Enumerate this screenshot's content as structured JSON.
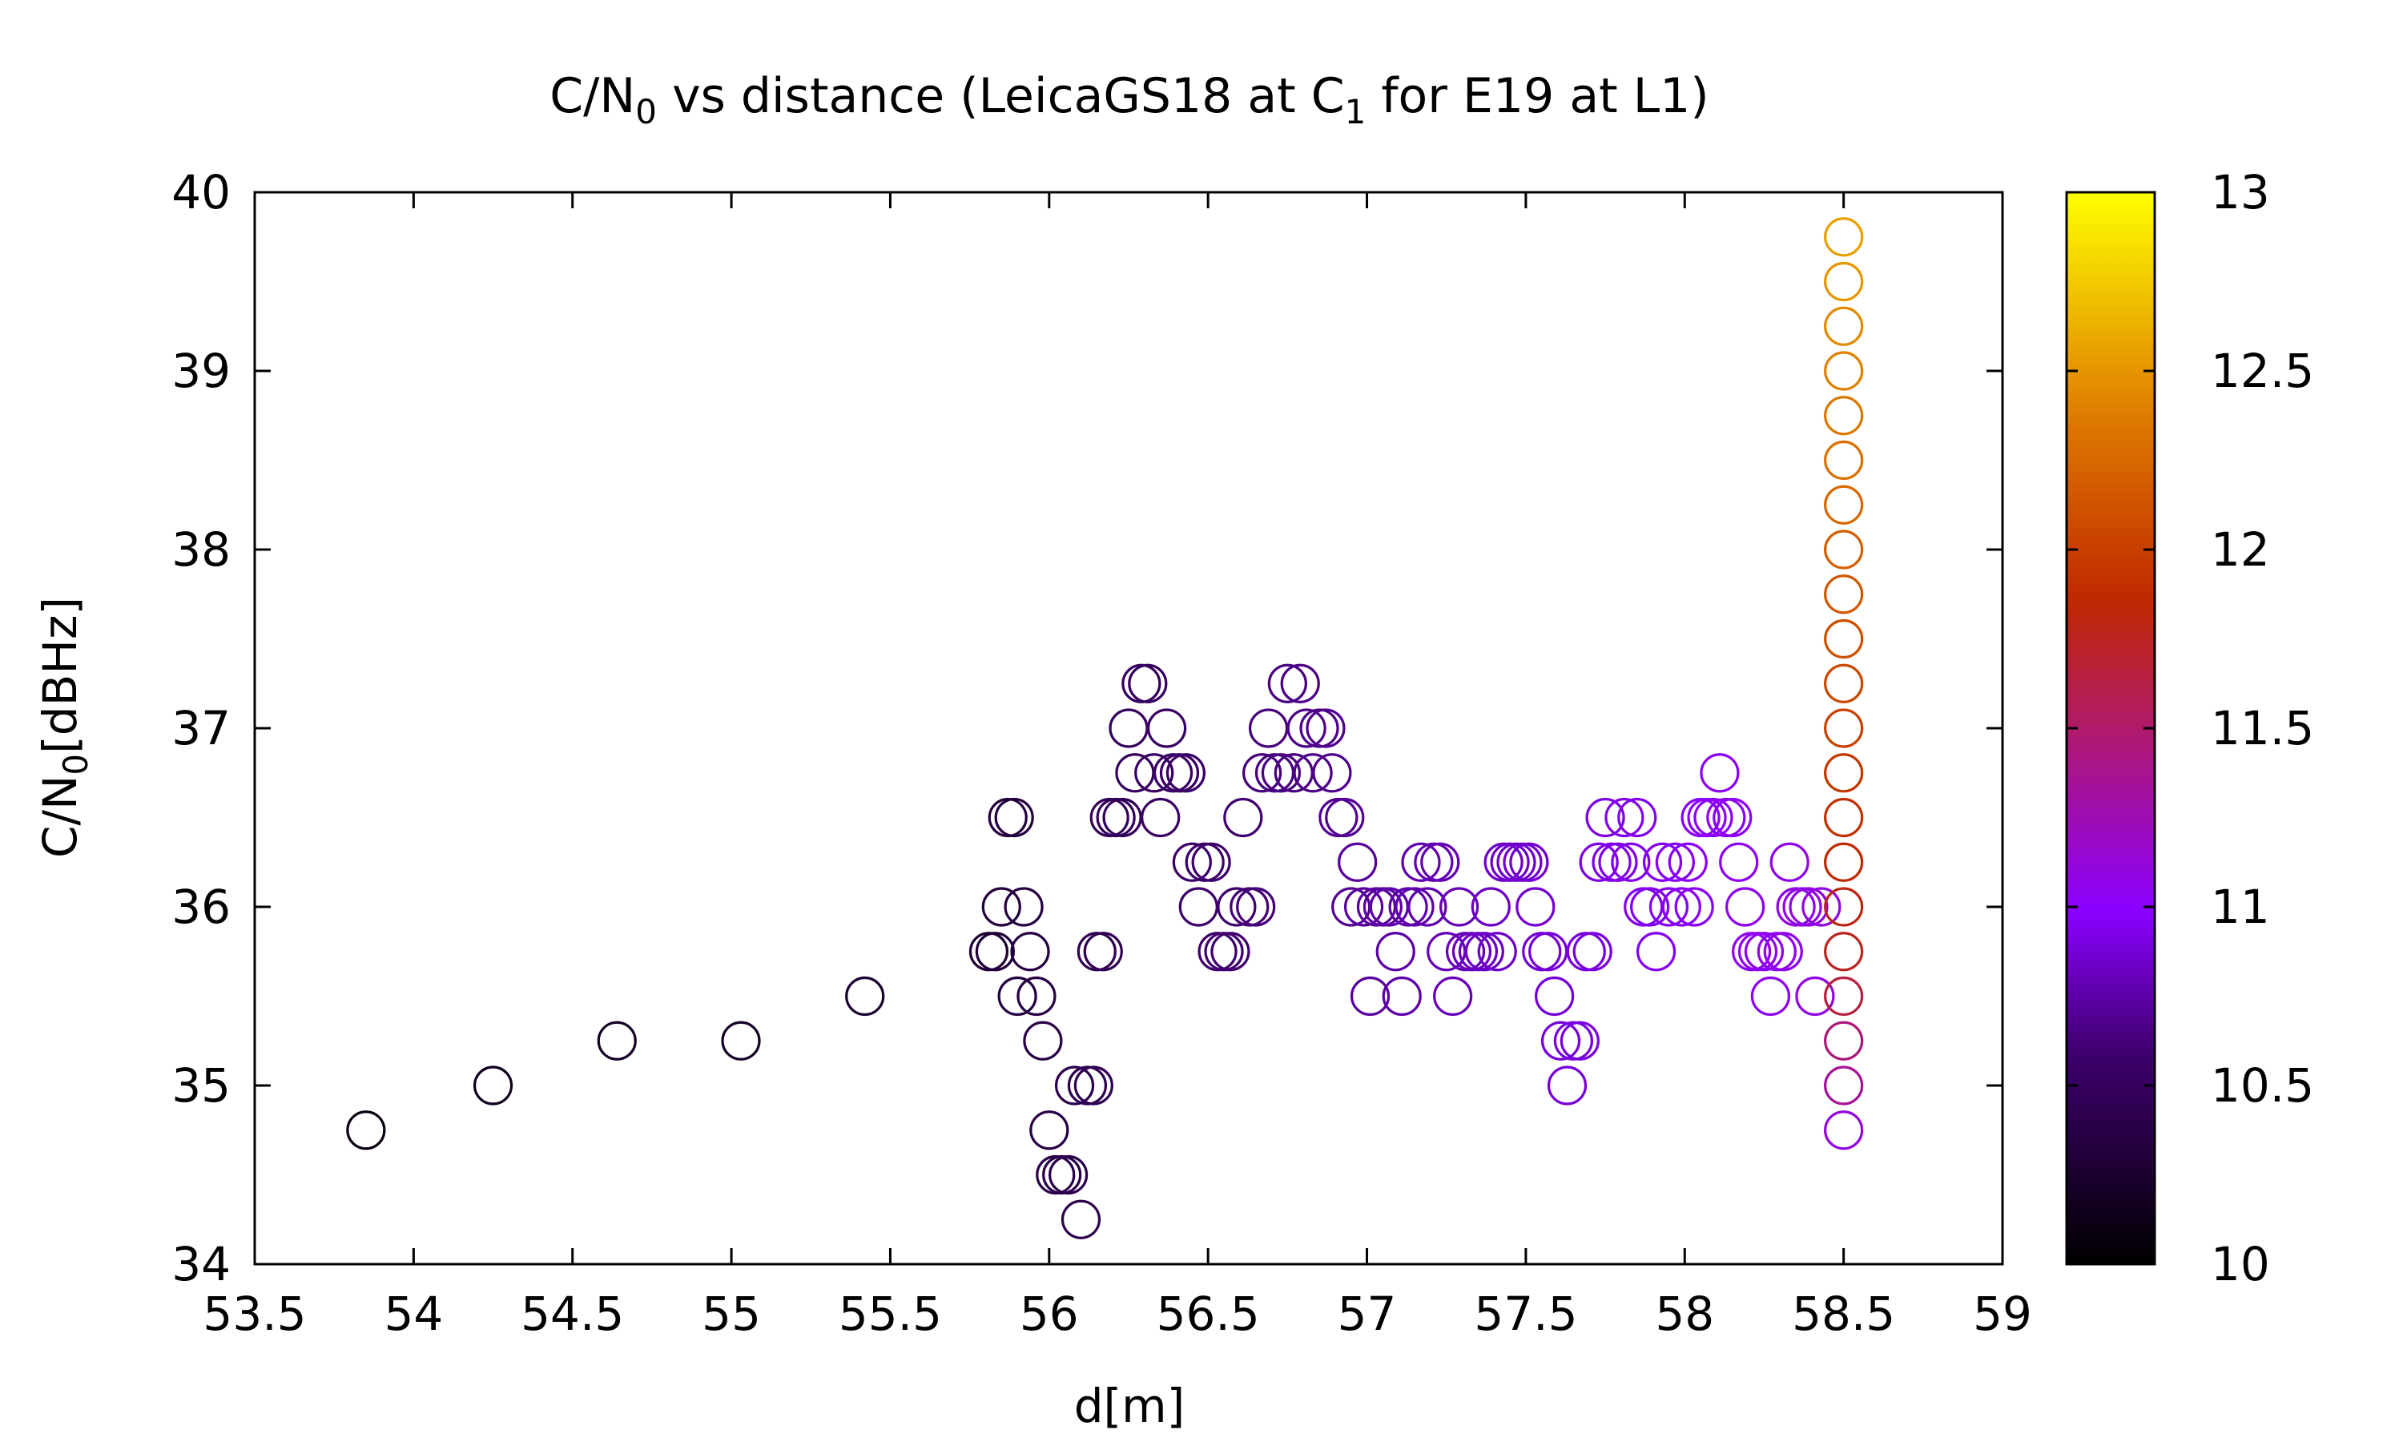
{
  "chart_data": {
    "type": "scatter",
    "title": {
      "text": "C/N",
      "sub": "0",
      "rest": " vs distance (LeicaGS18 at C",
      "sub2": "1",
      "rest2": " for E19 at L1)"
    },
    "xlabel": "d[m]",
    "ylabel": {
      "text": "C/N",
      "sub": "0",
      "rest": "[dBHz]"
    },
    "xlim": [
      53.5,
      59
    ],
    "ylim": [
      34,
      40
    ],
    "xticks": [
      "53.5",
      "54",
      "54.5",
      "55",
      "55.5",
      "56",
      "56.5",
      "57",
      "57.5",
      "58",
      "58.5",
      "59"
    ],
    "yticks": [
      "34",
      "35",
      "36",
      "37",
      "38",
      "39",
      "40"
    ],
    "colorbar": {
      "range": [
        10,
        13
      ],
      "ticks": [
        "10",
        "10.5",
        "11",
        "11.5",
        "12",
        "12.5",
        "13"
      ],
      "palette": "black-purple-red-orange-yellow"
    },
    "grid": false,
    "legend": "none",
    "marker": "open-circle",
    "points": [
      [
        53.85,
        34.75,
        10.1
      ],
      [
        54.25,
        35.0,
        10.15
      ],
      [
        54.64,
        35.25,
        10.2
      ],
      [
        55.03,
        35.25,
        10.2
      ],
      [
        55.42,
        35.5,
        10.25
      ],
      [
        55.81,
        35.75,
        10.3
      ],
      [
        55.83,
        35.75,
        10.3
      ],
      [
        55.85,
        36.0,
        10.32
      ],
      [
        55.87,
        36.5,
        10.33
      ],
      [
        55.89,
        36.5,
        10.33
      ],
      [
        55.9,
        35.5,
        10.35
      ],
      [
        55.92,
        36.0,
        10.35
      ],
      [
        55.94,
        35.75,
        10.36
      ],
      [
        55.96,
        35.5,
        10.37
      ],
      [
        55.98,
        35.25,
        10.38
      ],
      [
        56.0,
        34.75,
        10.38
      ],
      [
        56.02,
        34.5,
        10.4
      ],
      [
        56.04,
        34.5,
        10.4
      ],
      [
        56.06,
        34.5,
        10.4
      ],
      [
        56.08,
        35.0,
        10.42
      ],
      [
        56.1,
        34.25,
        10.42
      ],
      [
        56.12,
        35.0,
        10.43
      ],
      [
        56.14,
        35.0,
        10.44
      ],
      [
        56.15,
        35.75,
        10.45
      ],
      [
        56.17,
        35.75,
        10.45
      ],
      [
        56.19,
        36.5,
        10.47
      ],
      [
        56.21,
        36.5,
        10.48
      ],
      [
        56.23,
        36.5,
        10.48
      ],
      [
        56.25,
        37.0,
        10.5
      ],
      [
        56.27,
        36.75,
        10.5
      ],
      [
        56.29,
        37.25,
        10.5
      ],
      [
        56.31,
        37.25,
        10.52
      ],
      [
        56.33,
        36.75,
        10.52
      ],
      [
        56.35,
        36.5,
        10.53
      ],
      [
        56.37,
        37.0,
        10.53
      ],
      [
        56.39,
        36.75,
        10.55
      ],
      [
        56.41,
        36.75,
        10.55
      ],
      [
        56.43,
        36.75,
        10.55
      ],
      [
        56.45,
        36.25,
        10.56
      ],
      [
        56.47,
        36.0,
        10.57
      ],
      [
        56.49,
        36.25,
        10.57
      ],
      [
        56.51,
        36.25,
        10.58
      ],
      [
        56.53,
        35.75,
        10.58
      ],
      [
        56.55,
        35.75,
        10.6
      ],
      [
        56.57,
        35.75,
        10.6
      ],
      [
        56.59,
        36.0,
        10.6
      ],
      [
        56.61,
        36.5,
        10.6
      ],
      [
        56.63,
        36.0,
        10.62
      ],
      [
        56.65,
        36.0,
        10.62
      ],
      [
        56.67,
        36.75,
        10.63
      ],
      [
        56.69,
        37.0,
        10.63
      ],
      [
        56.71,
        36.75,
        10.64
      ],
      [
        56.73,
        36.75,
        10.65
      ],
      [
        56.75,
        37.25,
        10.65
      ],
      [
        56.77,
        36.75,
        10.65
      ],
      [
        56.79,
        37.25,
        10.66
      ],
      [
        56.81,
        37.0,
        10.66
      ],
      [
        56.83,
        36.75,
        10.67
      ],
      [
        56.85,
        37.0,
        10.67
      ],
      [
        56.87,
        37.0,
        10.68
      ],
      [
        56.89,
        36.75,
        10.68
      ],
      [
        56.91,
        36.5,
        10.7
      ],
      [
        56.93,
        36.5,
        10.7
      ],
      [
        56.95,
        36.0,
        10.7
      ],
      [
        56.97,
        36.25,
        10.72
      ],
      [
        56.99,
        36.0,
        10.72
      ],
      [
        57.01,
        35.5,
        10.73
      ],
      [
        57.03,
        36.0,
        10.73
      ],
      [
        57.05,
        36.0,
        10.74
      ],
      [
        57.07,
        36.0,
        10.75
      ],
      [
        57.09,
        35.75,
        10.75
      ],
      [
        57.11,
        35.5,
        10.75
      ],
      [
        57.13,
        36.0,
        10.76
      ],
      [
        57.15,
        36.0,
        10.76
      ],
      [
        57.17,
        36.25,
        10.77
      ],
      [
        57.19,
        36.0,
        10.77
      ],
      [
        57.21,
        36.25,
        10.78
      ],
      [
        57.23,
        36.25,
        10.78
      ],
      [
        57.25,
        35.75,
        10.8
      ],
      [
        57.27,
        35.5,
        10.8
      ],
      [
        57.29,
        36.0,
        10.8
      ],
      [
        57.31,
        35.75,
        10.8
      ],
      [
        57.33,
        35.75,
        10.82
      ],
      [
        57.35,
        35.75,
        10.82
      ],
      [
        57.37,
        35.75,
        10.83
      ],
      [
        57.39,
        36.0,
        10.83
      ],
      [
        57.41,
        35.75,
        10.84
      ],
      [
        57.43,
        36.25,
        10.84
      ],
      [
        57.45,
        36.25,
        10.85
      ],
      [
        57.47,
        36.25,
        10.85
      ],
      [
        57.49,
        36.25,
        10.86
      ],
      [
        57.51,
        36.25,
        10.86
      ],
      [
        57.53,
        36.0,
        10.87
      ],
      [
        57.55,
        35.75,
        10.87
      ],
      [
        57.57,
        35.75,
        10.88
      ],
      [
        57.59,
        35.5,
        10.88
      ],
      [
        57.61,
        35.25,
        10.89
      ],
      [
        57.63,
        35.0,
        10.89
      ],
      [
        57.65,
        35.25,
        10.9
      ],
      [
        57.67,
        35.25,
        10.9
      ],
      [
        57.69,
        35.75,
        10.9
      ],
      [
        57.71,
        35.75,
        10.9
      ],
      [
        57.73,
        36.25,
        10.92
      ],
      [
        57.75,
        36.5,
        10.92
      ],
      [
        57.77,
        36.25,
        10.93
      ],
      [
        57.79,
        36.25,
        10.93
      ],
      [
        57.81,
        36.5,
        10.94
      ],
      [
        57.83,
        36.25,
        10.94
      ],
      [
        57.85,
        36.5,
        10.95
      ],
      [
        57.87,
        36.0,
        10.95
      ],
      [
        57.89,
        36.0,
        10.95
      ],
      [
        57.91,
        35.75,
        10.96
      ],
      [
        57.93,
        36.25,
        10.96
      ],
      [
        57.95,
        36.0,
        10.97
      ],
      [
        57.97,
        36.25,
        10.97
      ],
      [
        57.99,
        36.0,
        10.98
      ],
      [
        58.01,
        36.25,
        10.98
      ],
      [
        58.03,
        36.0,
        10.99
      ],
      [
        58.05,
        36.5,
        10.99
      ],
      [
        58.07,
        36.5,
        11.0
      ],
      [
        58.09,
        36.5,
        11.0
      ],
      [
        58.11,
        36.75,
        11.0
      ],
      [
        58.13,
        36.5,
        11.02
      ],
      [
        58.15,
        36.5,
        11.02
      ],
      [
        58.17,
        36.25,
        11.03
      ],
      [
        58.19,
        36.0,
        11.03
      ],
      [
        58.21,
        35.75,
        11.04
      ],
      [
        58.23,
        35.75,
        11.04
      ],
      [
        58.25,
        35.75,
        11.05
      ],
      [
        58.27,
        35.5,
        11.05
      ],
      [
        58.29,
        35.75,
        11.06
      ],
      [
        58.31,
        35.75,
        11.06
      ],
      [
        58.33,
        36.25,
        11.07
      ],
      [
        58.35,
        36.0,
        11.07
      ],
      [
        58.37,
        36.0,
        11.08
      ],
      [
        58.39,
        36.0,
        11.08
      ],
      [
        58.41,
        35.5,
        11.09
      ],
      [
        58.43,
        36.0,
        11.09
      ],
      [
        58.5,
        34.75,
        11.1
      ],
      [
        58.5,
        35.0,
        11.35
      ],
      [
        58.5,
        35.25,
        11.45
      ],
      [
        58.5,
        35.5,
        11.65
      ],
      [
        58.5,
        35.75,
        11.75
      ],
      [
        58.5,
        36.0,
        11.8
      ],
      [
        58.5,
        36.25,
        11.85
      ],
      [
        58.5,
        36.5,
        11.9
      ],
      [
        58.5,
        36.75,
        11.95
      ],
      [
        58.5,
        37.0,
        12.0
      ],
      [
        58.5,
        37.25,
        12.05
      ],
      [
        58.5,
        37.5,
        12.1
      ],
      [
        58.5,
        37.75,
        12.15
      ],
      [
        58.5,
        38.0,
        12.2
      ],
      [
        58.5,
        38.25,
        12.25
      ],
      [
        58.5,
        38.5,
        12.3
      ],
      [
        58.5,
        38.75,
        12.35
      ],
      [
        58.5,
        39.0,
        12.4
      ],
      [
        58.5,
        39.25,
        12.45
      ],
      [
        58.5,
        39.5,
        12.5
      ],
      [
        58.5,
        39.75,
        12.55
      ]
    ]
  }
}
